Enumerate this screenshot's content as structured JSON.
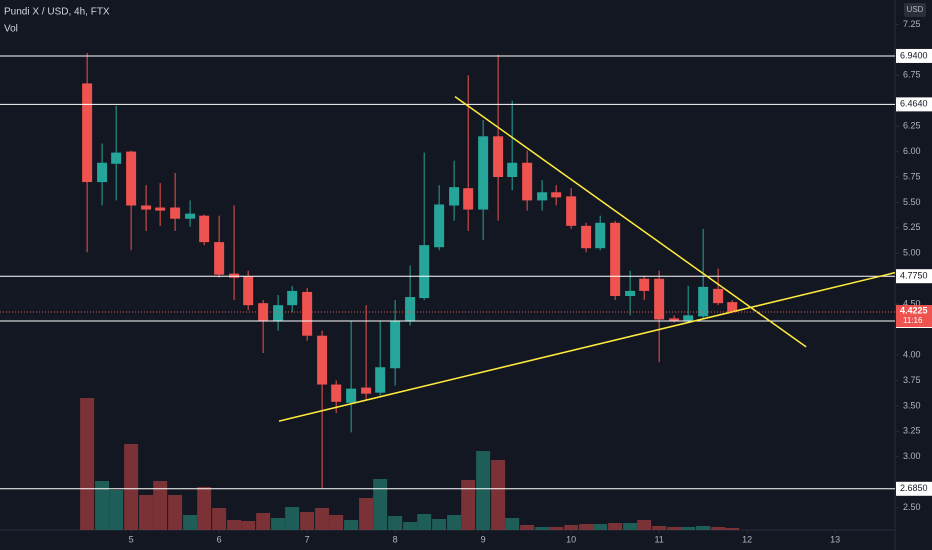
{
  "chart_data": {
    "type": "candlestick",
    "title": "Pundi X / USD, 4h, FTX",
    "volume_label": "Vol",
    "currency": "USD",
    "x": [
      4.5,
      4.67,
      4.83,
      5,
      5.17,
      5.33,
      5.5,
      5.67,
      5.83,
      6,
      6.17,
      6.33,
      6.5,
      6.67,
      6.83,
      7,
      7.17,
      7.33,
      7.5,
      7.67,
      7.83,
      8,
      8.17,
      8.33,
      8.5,
      8.67,
      8.83,
      9,
      9.17,
      9.33,
      9.5,
      9.67,
      9.83,
      10,
      10.17,
      10.33,
      10.5,
      10.67,
      10.83,
      11,
      11.17,
      11.33,
      11.5,
      11.67,
      11.83
    ],
    "open": [
      6.67,
      5.7,
      5.88,
      6.0,
      5.47,
      5.45,
      5.45,
      5.34,
      5.37,
      5.11,
      4.8,
      4.77,
      4.51,
      4.34,
      4.49,
      4.62,
      4.19,
      3.71,
      3.53,
      3.68,
      3.63,
      3.87,
      4.34,
      4.56,
      5.06,
      5.47,
      5.64,
      5.43,
      6.15,
      5.75,
      5.89,
      5.52,
      5.6,
      5.56,
      5.27,
      5.05,
      5.3,
      4.58,
      4.75,
      4.75,
      4.36,
      4.34,
      4.38,
      4.65,
      4.52
    ],
    "high": [
      6.97,
      6.08,
      6.45,
      6.01,
      5.67,
      5.69,
      5.79,
      5.52,
      5.38,
      5.37,
      5.47,
      4.83,
      4.54,
      4.59,
      4.68,
      4.66,
      4.24,
      3.75,
      4.34,
      4.49,
      4.34,
      4.54,
      4.88,
      5.99,
      5.67,
      5.91,
      6.75,
      6.31,
      6.95,
      6.5,
      6.01,
      5.72,
      5.67,
      5.64,
      5.3,
      5.37,
      5.32,
      4.83,
      4.78,
      4.83,
      4.39,
      4.68,
      5.24,
      4.85,
      4.54
    ],
    "low": [
      5.01,
      5.47,
      5.52,
      5.03,
      5.22,
      5.27,
      5.22,
      5.26,
      5.08,
      4.76,
      4.54,
      4.44,
      4.02,
      4.24,
      4.42,
      4.14,
      2.69,
      3.43,
      3.24,
      3.55,
      3.6,
      3.7,
      4.29,
      4.54,
      5.03,
      5.32,
      5.22,
      5.13,
      5.32,
      5.62,
      5.42,
      5.42,
      5.47,
      5.24,
      5.01,
      5.03,
      4.54,
      4.39,
      4.54,
      3.93,
      4.32,
      4.32,
      4.36,
      4.49,
      4.41
    ],
    "close": [
      5.7,
      5.89,
      5.99,
      5.47,
      5.43,
      5.42,
      5.34,
      5.39,
      5.11,
      4.79,
      4.76,
      4.49,
      4.34,
      4.49,
      4.63,
      4.19,
      3.71,
      3.54,
      3.67,
      3.62,
      3.88,
      4.34,
      4.57,
      5.08,
      5.48,
      5.65,
      5.43,
      6.15,
      5.75,
      5.89,
      5.52,
      5.6,
      5.55,
      5.27,
      5.05,
      5.3,
      4.58,
      4.63,
      4.63,
      4.35,
      4.34,
      4.39,
      4.67,
      4.51,
      4.4225
    ],
    "volume": [
      132,
      49,
      40,
      86,
      35,
      49,
      35,
      15,
      43,
      22,
      10,
      9,
      17,
      12,
      23,
      18,
      22,
      15,
      10,
      32,
      51,
      14,
      8,
      16,
      11,
      15,
      50,
      79,
      70,
      12,
      5,
      3,
      3,
      5,
      6,
      6,
      7,
      7,
      10,
      4,
      3,
      3,
      4,
      3,
      2
    ],
    "up_color": "#26a69a",
    "down_color": "#ef5350",
    "up_volume_color": "#1f5e58",
    "down_volume_color": "#7a3236",
    "xlim": [
      3.51,
      13.68
    ],
    "xticks": [
      5,
      6,
      7,
      8,
      9,
      10,
      11,
      12,
      13
    ],
    "ylim": [
      2.28,
      7.49
    ],
    "yticks": [
      7.25,
      6.75,
      6.25,
      {
        "value": 6,
        "label": "6.00"
      },
      5.75,
      {
        "value": 5.5,
        "label": "5.50"
      },
      5.25,
      {
        "value": 5,
        "label": "5.00"
      },
      {
        "value": 4.5,
        "label": "4.50"
      },
      {
        "value": 4,
        "label": "4.00"
      },
      3.75,
      {
        "value": 3.5,
        "label": "3.50"
      },
      3.25,
      {
        "value": 3,
        "label": "3.00"
      },
      {
        "value": 2.5,
        "label": "2.50"
      }
    ],
    "levels": [
      {
        "value": 6.94,
        "label": "6.9400"
      },
      {
        "value": 6.464,
        "label": "6.4640"
      },
      {
        "value": 4.775,
        "label": "4.7750"
      },
      4.3345,
      {
        "value": 2.685,
        "label": "2.6850"
      }
    ],
    "level_color": "#ffffff",
    "trend_lines": [
      {
        "x": [
          8.68,
          12.67
        ],
        "y": [
          6.54,
          4.08
        ]
      },
      {
        "x": [
          6.68,
          13.68
        ],
        "y": [
          3.35,
          4.81
        ]
      }
    ],
    "trend_color": "#ffeb3b",
    "last_price": 4.4225,
    "countdown": "11:16"
  }
}
